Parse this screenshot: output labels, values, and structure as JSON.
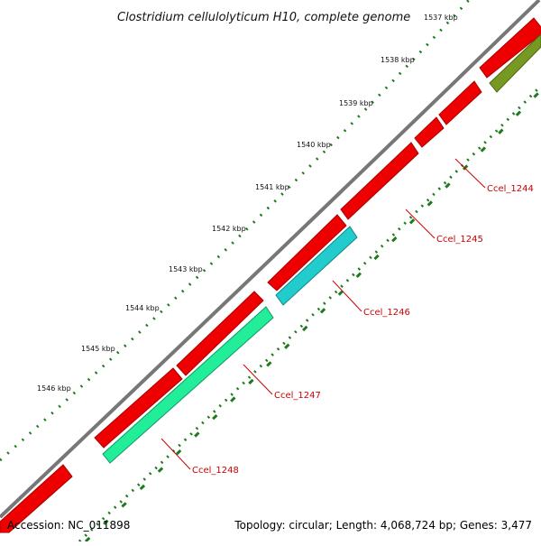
{
  "title": "Clostridium cellulolyticum H10, complete genome",
  "footer": {
    "accession": "Accession: NC_011898",
    "summary": "Topology: circular; Length: 4,068,724 bp; Genes: 3,477"
  },
  "ticks": [
    {
      "label": "1537 kbp"
    },
    {
      "label": "1538 kbp"
    },
    {
      "label": "1539 kbp"
    },
    {
      "label": "1540 kbp"
    },
    {
      "label": "1541 kbp"
    },
    {
      "label": "1542 kbp"
    },
    {
      "label": "1543 kbp"
    },
    {
      "label": "1544 kbp"
    },
    {
      "label": "1545 kbp"
    },
    {
      "label": "1546 kbp"
    }
  ],
  "gene_labels": [
    "Ccel_1244",
    "Ccel_1245",
    "Ccel_1246",
    "Ccel_1247",
    "Ccel_1248"
  ],
  "colors": {
    "backbone": "#888888",
    "cds": "#ff0000",
    "feature_cyan": "#22cccc",
    "feature_green": "#22ee99",
    "feature_olive": "#77991f",
    "tick": "#1f7a1f",
    "label_red": "#cc0000"
  }
}
